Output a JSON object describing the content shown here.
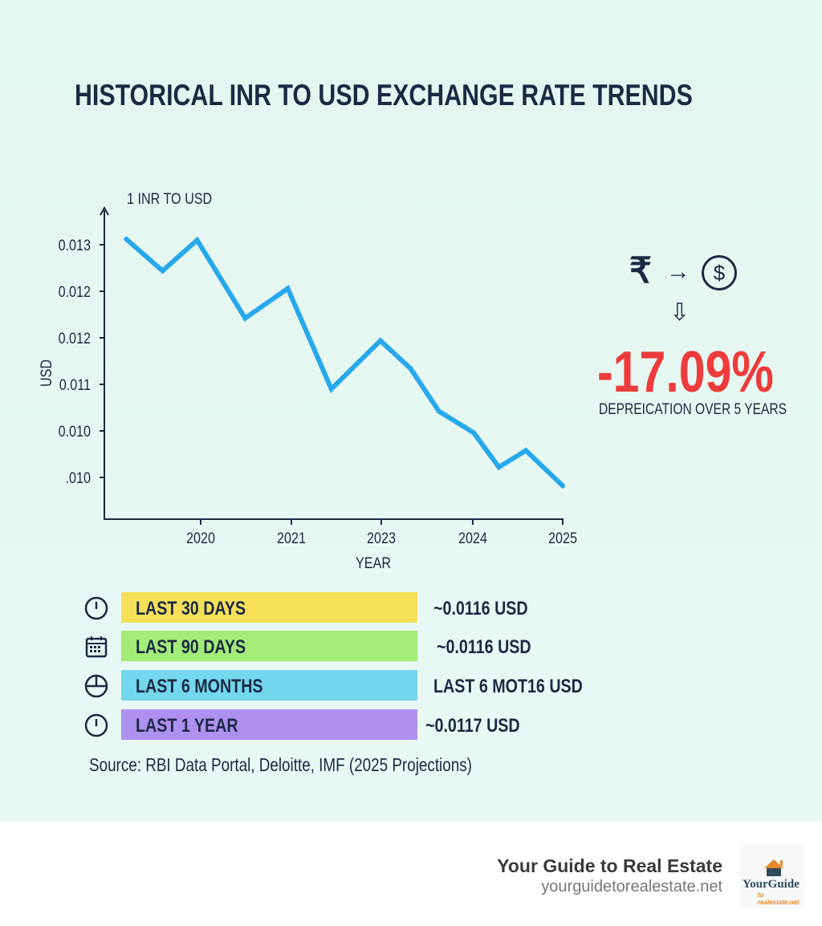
{
  "title": "HISTORICAL INR TO USD EXCHANGE RATE TRENDS",
  "chart_data": {
    "type": "line",
    "title": "HISTORICAL INR TO USD EXCHANGE RATE TRENDS",
    "axis_title": "1 INR TO USD",
    "ylabel": "USD",
    "xlabel": "YEAR",
    "x_ticks": [
      2020,
      2021,
      2023,
      2024,
      2025
    ],
    "x_tick_labels": [
      "2020",
      "2021",
      "2023",
      "2024",
      "2025"
    ],
    "y_ticks": [
      0.013,
      0.0125,
      0.012,
      0.0115,
      0.011,
      0.0105
    ],
    "y_tick_labels": [
      "0.013",
      "0.012",
      "0.012",
      "0.011",
      "0.010",
      ".010"
    ],
    "ylim": [
      0.0098,
      0.0136
    ],
    "grid": false,
    "color": "#27a9ec",
    "x": [
      2019.18,
      2019.58,
      2019.96,
      2020.49,
      2020.96,
      2021.89,
      2022.98,
      2023.32,
      2023.63,
      2024.01,
      2024.29,
      2024.59,
      2025.0
    ],
    "y": [
      0.01306,
      0.01272,
      0.01305,
      0.01221,
      0.01253,
      0.01145,
      0.01197,
      0.01167,
      0.01121,
      0.01098,
      0.01061,
      0.01079,
      0.01041
    ]
  },
  "callout": {
    "rupee_symbol": "₹",
    "arrow": "→",
    "dollar_symbol": "$",
    "down_arrow": "⇩",
    "percent": "-17.09%",
    "percent_color": "#ee3b3b",
    "caption": "DEPREICATION OVER 5 YEARS"
  },
  "periods": [
    {
      "icon": "clock-icon",
      "label": "LAST 30 DAYS",
      "value": "~0.0116 USD",
      "color": "#f6e05a"
    },
    {
      "icon": "calendar-icon",
      "label": "LAST 90 DAYS",
      "value": "~0.0116 USD",
      "color": "#a2ec77"
    },
    {
      "icon": "pie-icon",
      "label": "LAST 6 MONTHS",
      "value": "LAST 6 MOT16 USD",
      "color": "#73d7ee"
    },
    {
      "icon": "clock-icon",
      "label": "LAST 1 YEAR",
      "value": "~0.0117 USD",
      "color": "#ae90f0"
    }
  ],
  "source": "Source: RBI Data Portal, Deloitte, IMF (2025 Projections)",
  "footer": {
    "brand": "Your Guide to Real Estate",
    "url": "yourguidetorealestate.net",
    "logo_text": "YourGuide",
    "logo_sub": "to realestate.net"
  }
}
